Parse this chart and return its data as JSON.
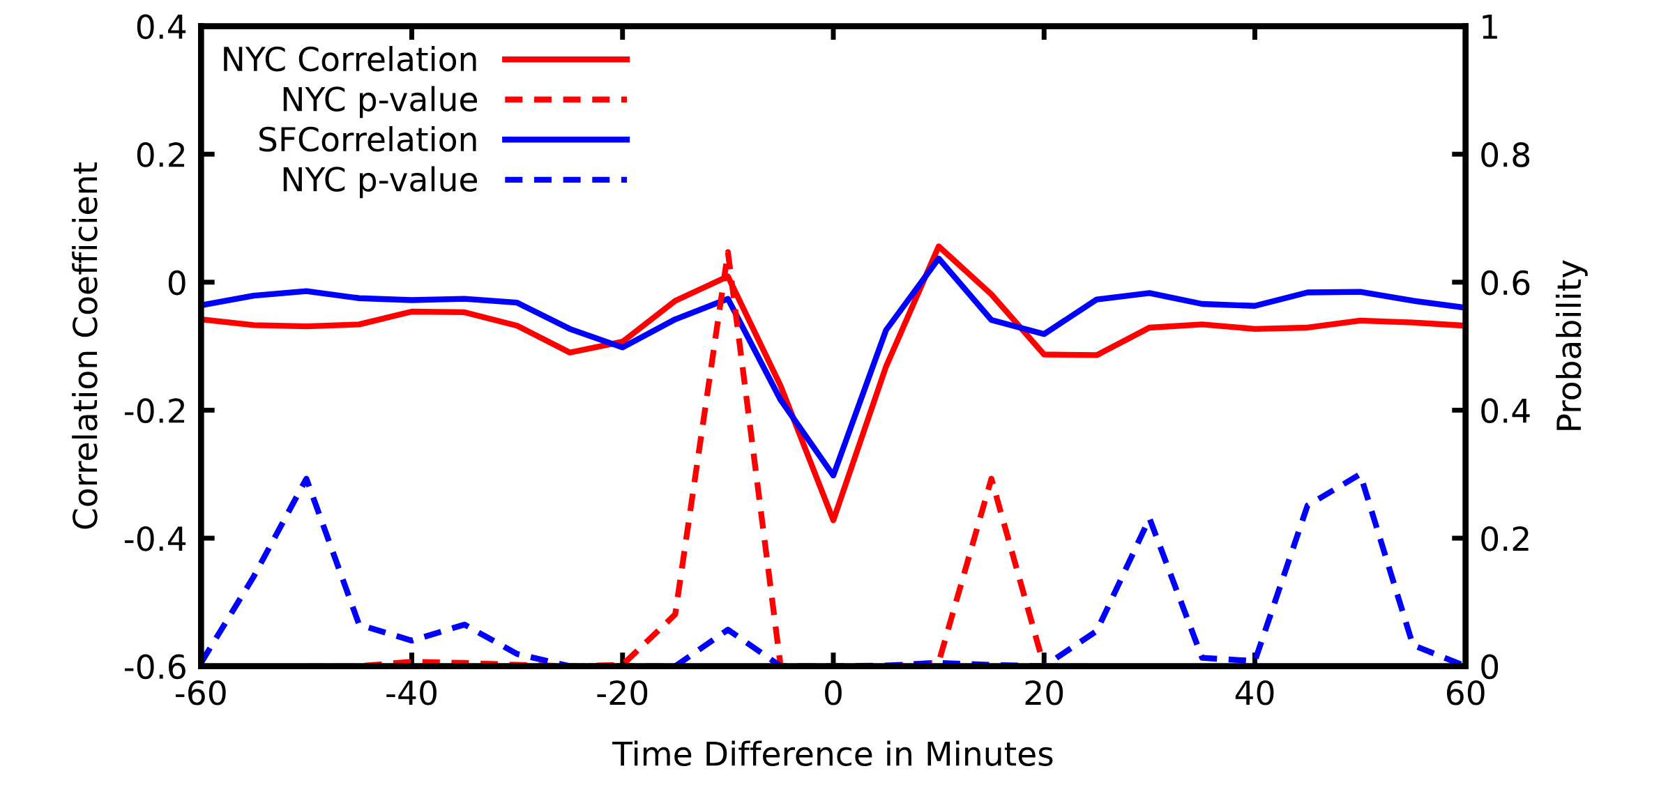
{
  "chart_data": {
    "type": "line",
    "xlabel": "Time Difference in Minutes",
    "ylabel": "Correlation Coefficient",
    "y2label": "Probability",
    "x": [
      -60,
      -55,
      -50,
      -45,
      -40,
      -35,
      -30,
      -25,
      -20,
      -15,
      -10,
      -5,
      0,
      5,
      10,
      15,
      20,
      25,
      30,
      35,
      40,
      45,
      50,
      55,
      60
    ],
    "xlim": [
      -60,
      60
    ],
    "xticks": [
      -60,
      -40,
      -20,
      0,
      20,
      40,
      60
    ],
    "ylim": [
      -0.6,
      0.4
    ],
    "yticks": [
      -0.6,
      -0.4,
      -0.2,
      0,
      0.2,
      0.4
    ],
    "y2lim": [
      0,
      1
    ],
    "y2ticks": [
      0,
      0.2,
      0.4,
      0.6,
      0.8,
      1
    ],
    "legend": "top left",
    "grid": false,
    "series": [
      {
        "name": "NYC Correlation",
        "color": "#ff0000",
        "line_style": "solid",
        "values": [
          -0.058,
          -0.067,
          -0.069,
          -0.066,
          -0.046,
          -0.047,
          -0.068,
          -0.11,
          -0.093,
          -0.029,
          0.009,
          -0.162,
          -0.372,
          -0.132,
          0.056,
          -0.019,
          -0.113,
          -0.114,
          -0.071,
          -0.066,
          -0.073,
          -0.071,
          -0.06,
          -0.063,
          -0.068
        ]
      },
      {
        "name": "NYC p-value",
        "color": "#ff0000",
        "line_style": "dashed",
        "axis": "y2",
        "values": [
          null,
          null,
          0,
          0,
          0.007,
          0.005,
          0.002,
          0,
          0.002,
          0.081,
          0.647,
          0,
          0,
          0,
          0.006,
          0.293,
          0,
          0,
          null,
          null,
          null,
          null,
          null,
          null,
          null
        ]
      },
      {
        "name": "SFCorrelation",
        "color": "#0000ff",
        "line_style": "solid",
        "values": [
          -0.036,
          -0.021,
          -0.014,
          -0.025,
          -0.028,
          -0.026,
          -0.032,
          -0.073,
          -0.102,
          -0.058,
          -0.026,
          -0.184,
          -0.302,
          -0.075,
          0.037,
          -0.059,
          -0.081,
          -0.027,
          -0.017,
          -0.034,
          -0.037,
          -0.016,
          -0.015,
          -0.029,
          -0.04
        ]
      },
      {
        "name": "NYC p-value",
        "color": "#0000ff",
        "line_style": "dashed",
        "axis": "y2",
        "values": [
          0.005,
          0.14,
          0.293,
          0.065,
          0.04,
          0.065,
          0.019,
          0,
          0,
          0,
          0.057,
          0,
          0,
          0.001,
          0.005,
          0.002,
          0,
          0.055,
          0.231,
          0.013,
          0.008,
          0.251,
          0.3,
          0.033,
          0
        ]
      }
    ]
  }
}
